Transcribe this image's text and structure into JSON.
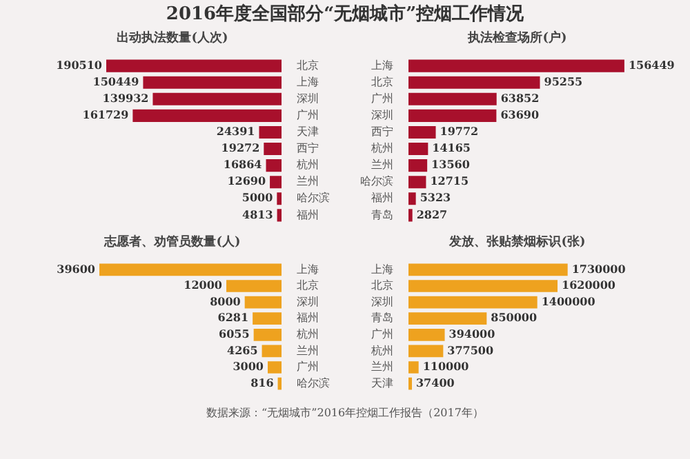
{
  "chart_data": [
    {
      "type": "bar",
      "orientation": "horizontal",
      "title": "2016年度全国部分“无烟城市”控烟工作情况",
      "subtitle": "出动执法数量(人次)",
      "categories": [
        "北京",
        "上海",
        "深圳",
        "广州",
        "天津",
        "西宁",
        "杭州",
        "兰州",
        "哈尔滨",
        "福州"
      ],
      "values": [
        190510,
        150449,
        139932,
        161729,
        24391,
        19272,
        16864,
        12690,
        5000,
        4813
      ],
      "color": "#a8102c",
      "data_labels": true
    },
    {
      "type": "bar",
      "orientation": "horizontal",
      "title": "执法检查场所(户)",
      "categories": [
        "上海",
        "北京",
        "广州",
        "深圳",
        "西宁",
        "杭州",
        "兰州",
        "哈尔滨",
        "福州",
        "青岛"
      ],
      "values": [
        156449,
        95255,
        63852,
        63690,
        19772,
        14165,
        13560,
        12715,
        5323,
        2827
      ],
      "color": "#a8102c",
      "data_labels": true
    },
    {
      "type": "bar",
      "orientation": "horizontal",
      "title": "志愿者、劝管员数量(人)",
      "categories": [
        "上海",
        "北京",
        "深圳",
        "福州",
        "杭州",
        "兰州",
        "广州",
        "哈尔滨"
      ],
      "values": [
        39600,
        12000,
        8000,
        6281,
        6055,
        4265,
        3000,
        816
      ],
      "color": "#eea21f",
      "data_labels": true
    },
    {
      "type": "bar",
      "orientation": "horizontal",
      "title": "发放、张贴禁烟标识(张)",
      "categories": [
        "上海",
        "北京",
        "深圳",
        "青岛",
        "广州",
        "杭州",
        "兰州",
        "天津"
      ],
      "values": [
        1730000,
        1620000,
        1400000,
        850000,
        394000,
        377500,
        110000,
        37400
      ],
      "color": "#eea21f",
      "data_labels": true,
      "annotations": [
        "数据来源：“无烟城市”2016年控烟工作报告（2017年）"
      ]
    }
  ]
}
